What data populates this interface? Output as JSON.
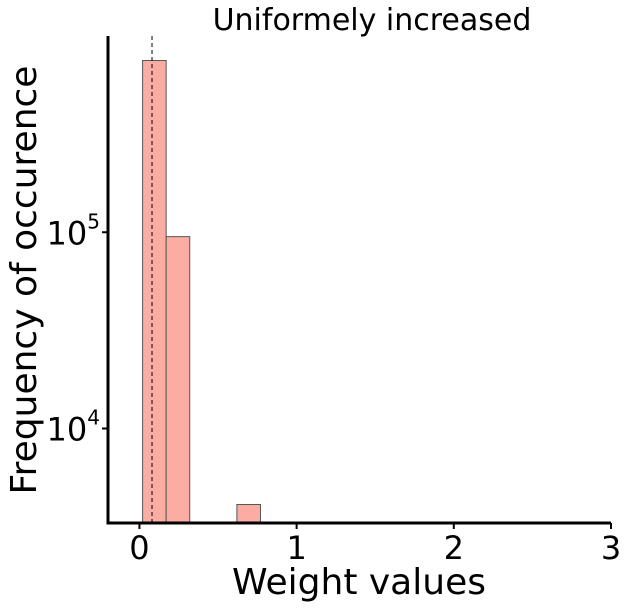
{
  "chart_data": {
    "type": "bar",
    "title": "Uniformely increased",
    "xlabel": "Weight values",
    "ylabel": "Frequency of occurence",
    "x_ticks": [
      "0",
      "1",
      "2",
      "3"
    ],
    "y_ticks": [
      {
        "base": "10",
        "exp": "4",
        "value": 10000
      },
      {
        "base": "10",
        "exp": "5",
        "value": 100000
      }
    ],
    "xlim": [
      -0.2,
      3.0
    ],
    "ylim": [
      3300,
      1000000
    ],
    "y_scale": "log",
    "reference_line_x": 0.08,
    "bins": [
      {
        "x0": 0.02,
        "x1": 0.17,
        "count": 750000
      },
      {
        "x0": 0.17,
        "x1": 0.32,
        "count": 95000
      },
      {
        "x0": 0.62,
        "x1": 0.77,
        "count": 4100
      }
    ],
    "bar_color": "#fbada3",
    "edge_color": "#555555",
    "grid": false
  }
}
